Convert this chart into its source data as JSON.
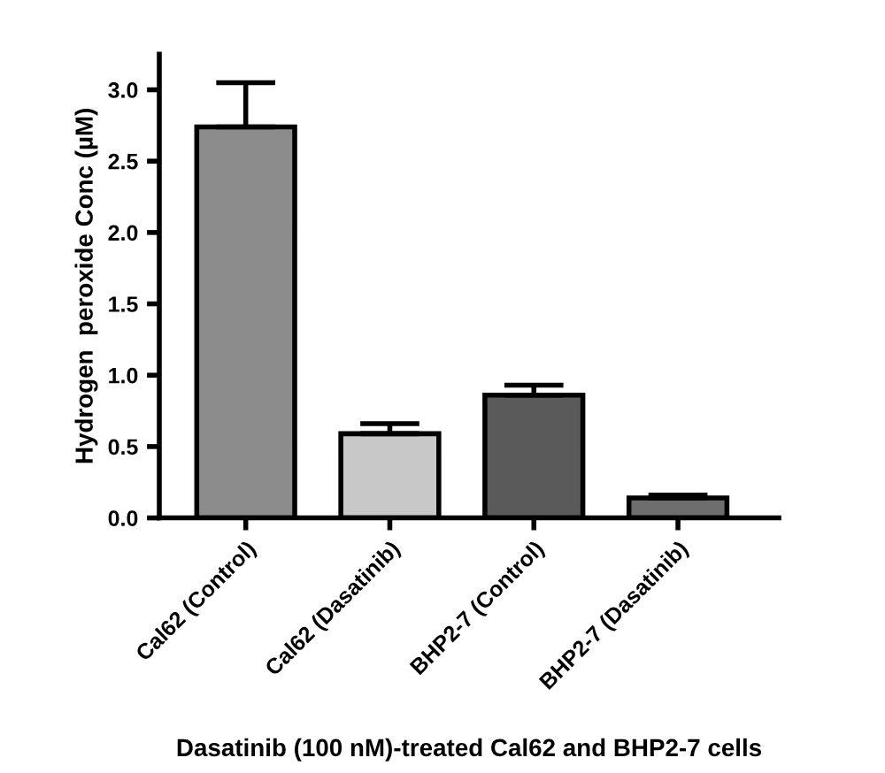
{
  "chart_data": {
    "type": "bar",
    "categories": [
      "Cal62 (Control)",
      "Cal62 (Dasatinib)",
      "BHP2-7 (Control)",
      "BHP2-7 (Dasatinib)"
    ],
    "values": [
      2.74,
      0.59,
      0.86,
      0.14
    ],
    "errors": [
      [
        2.74,
        3.05
      ],
      [
        0.59,
        0.66
      ],
      [
        0.86,
        0.93
      ],
      [
        0.14,
        0.16
      ]
    ],
    "colors": [
      "#8c8c8c",
      "#c8c8c8",
      "#5a5a5a",
      "#6e6e6e"
    ],
    "xlabel": "Dasatinib (100 nM)-treated Cal62 and BHP2-7 cells",
    "ylabel": "Hydrogen  peroxide Conc (µM)",
    "ylim": [
      0,
      3.25
    ],
    "yticks": [
      {
        "value": 0,
        "label": "0.0"
      },
      {
        "value": 0.5,
        "label": "0.5"
      },
      {
        "value": 1,
        "label": "1.0"
      },
      {
        "value": 1.5,
        "label": "1.5"
      },
      {
        "value": 2,
        "label": "2.0"
      },
      {
        "value": 2.5,
        "label": "2.5"
      },
      {
        "value": 3,
        "label": "3.0"
      }
    ],
    "grid": false,
    "legend": false
  }
}
